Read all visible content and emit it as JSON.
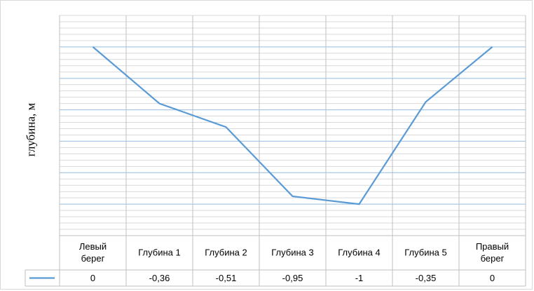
{
  "chart_data": {
    "type": "line",
    "ylabel": "глубина,  м",
    "categories": [
      [
        "Левый",
        "берег"
      ],
      [
        "Глубина 1"
      ],
      [
        "Глубина 2"
      ],
      [
        "Глубина 3"
      ],
      [
        "Глубина 4"
      ],
      [
        "Глубина 5"
      ],
      [
        "Правый",
        "берег"
      ]
    ],
    "series": [
      {
        "values": [
          0,
          -0.36,
          -0.51,
          -0.95,
          -1,
          -0.35,
          0
        ],
        "color": "#5b9bd5"
      }
    ],
    "table_values": [
      "0",
      "-0,36",
      "-0,51",
      "-0,95",
      "-1",
      "-0,35",
      "0"
    ],
    "ylim": [
      -1.2,
      0.2
    ],
    "major_gridline_step": 0.2,
    "minor_gridline_step": 0.04,
    "grid": true,
    "legend": "data-table"
  }
}
